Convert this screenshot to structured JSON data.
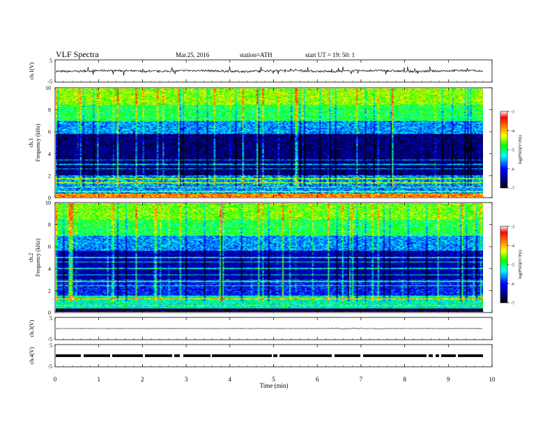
{
  "header": {
    "title": "VLF  Spectra",
    "date": "Mar.25, 2016",
    "station": "station=ATH",
    "start": "start  UT  =    19: 50: 1"
  },
  "colors": {
    "scale": [
      "#000000",
      "#00007f",
      "#0000ff",
      "#00ffff",
      "#00ff00",
      "#ffff00",
      "#ff7f00",
      "#ff0000",
      "#ffffff"
    ],
    "trace": "#000000"
  },
  "chart_data": [
    {
      "type": "line",
      "panel": "ch1-waveform",
      "ylabel": "ch.1(V)",
      "yticks": [
        "5",
        "-5"
      ],
      "ylim": [
        -5,
        5
      ],
      "xlim": [
        0,
        10
      ],
      "series": [
        {
          "values_hint": "continuous signal near 0 V with spikes to about ±2 V"
        }
      ]
    },
    {
      "type": "heatmap",
      "panel": "ch1-spectrogram",
      "ylabel": [
        "ch.1",
        "Frequency  (kHz)"
      ],
      "yticks": [
        "0",
        "2",
        "4",
        "6",
        "8",
        "10"
      ],
      "ylim": [
        0,
        10
      ],
      "xlim": [
        0,
        9.8
      ],
      "colorbar": {
        "label": "log(PSD)(V²/Hz)",
        "ticks": [
          "-3",
          "-4",
          "-5",
          "-6",
          "-7"
        ],
        "range": [
          -7,
          -3
        ]
      },
      "bands": [
        {
          "range_khz": [
            0,
            0.3
          ],
          "level": -3.8
        },
        {
          "range_khz": [
            0.3,
            2.0
          ],
          "level": -5.6
        },
        {
          "range_khz": [
            2.0,
            5.8
          ],
          "level": -6.6
        },
        {
          "range_khz": [
            5.8,
            7.0
          ],
          "level": -5.6
        },
        {
          "range_khz": [
            7.0,
            8.5
          ],
          "level": -4.9
        },
        {
          "range_khz": [
            8.5,
            10.0
          ],
          "level": -4.5
        }
      ],
      "lines_khz": [
        0.5,
        0.9,
        1.3,
        1.7,
        2.6,
        3.0,
        3.4
      ]
    },
    {
      "type": "heatmap",
      "panel": "ch2-spectrogram",
      "ylabel": [
        "ch.2",
        "Frequency  (kHz)"
      ],
      "yticks": [
        "0",
        "2",
        "4",
        "6",
        "8",
        "10"
      ],
      "ylim": [
        0,
        10
      ],
      "xlim": [
        0,
        9.8
      ],
      "colorbar": {
        "label": "log(PSD)(V²/Hz)",
        "ticks": [
          "-3",
          "-4",
          "-5",
          "-6",
          "-7"
        ],
        "range": [
          -7,
          -3
        ]
      },
      "bands": [
        {
          "range_khz": [
            0,
            0.3
          ],
          "level": -6.8
        },
        {
          "range_khz": [
            0.3,
            1.5
          ],
          "level": -5.2
        },
        {
          "range_khz": [
            1.5,
            3.0
          ],
          "level": -6.0
        },
        {
          "range_khz": [
            3.0,
            5.6
          ],
          "level": -6.4
        },
        {
          "range_khz": [
            5.6,
            7.0
          ],
          "level": -5.6
        },
        {
          "range_khz": [
            7.0,
            8.5
          ],
          "level": -4.9
        },
        {
          "range_khz": [
            8.5,
            10.0
          ],
          "level": -4.6
        }
      ],
      "lines_khz": [
        0.6,
        1.2,
        2.4,
        2.8,
        3.4,
        4.0,
        4.6,
        5.0
      ]
    },
    {
      "type": "line",
      "panel": "ch3-waveform",
      "ylabel": "ch.3(V)",
      "yticks": [
        "5",
        "-5"
      ],
      "ylim": [
        -5,
        5
      ],
      "xlim": [
        0,
        10
      ],
      "series": [
        {
          "values_hint": "flat near 0 V"
        }
      ]
    },
    {
      "type": "line",
      "panel": "ch4-waveform",
      "ylabel": "ch.4(V)",
      "yticks": [
        "5",
        "-5"
      ],
      "ylim": [
        -5,
        5
      ],
      "xlim": [
        0,
        10
      ],
      "series": [
        {
          "values_hint": "dense pulse train centered near 0 V with brief gaps"
        }
      ]
    }
  ],
  "xaxis": {
    "label": "Time  (min)",
    "ticks": [
      "0",
      "1",
      "2",
      "3",
      "4",
      "5",
      "6",
      "7",
      "8",
      "9",
      "10"
    ],
    "range": [
      0,
      10
    ]
  }
}
